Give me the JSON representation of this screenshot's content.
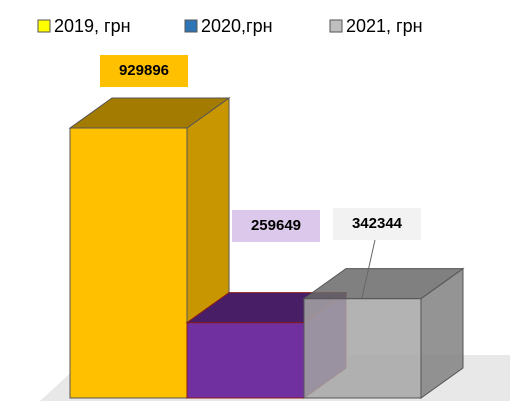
{
  "chart_data": {
    "type": "bar3d",
    "series": [
      {
        "name": "2019, грн",
        "color": "#ffc000",
        "legend_color": "#ffff00",
        "values": [
          929896
        ],
        "label_color": "#ffc000"
      },
      {
        "name": "2020,грн",
        "color": "#7030a0",
        "legend_color": "#2e75b6",
        "values": [
          259649
        ],
        "label_color": "#dcc8ea"
      },
      {
        "name": "2021, грн",
        "color": "#a6a6a6",
        "legend_color": "#bfbfbf",
        "values": [
          342344
        ],
        "label_color": "#f2f2f2"
      }
    ]
  }
}
